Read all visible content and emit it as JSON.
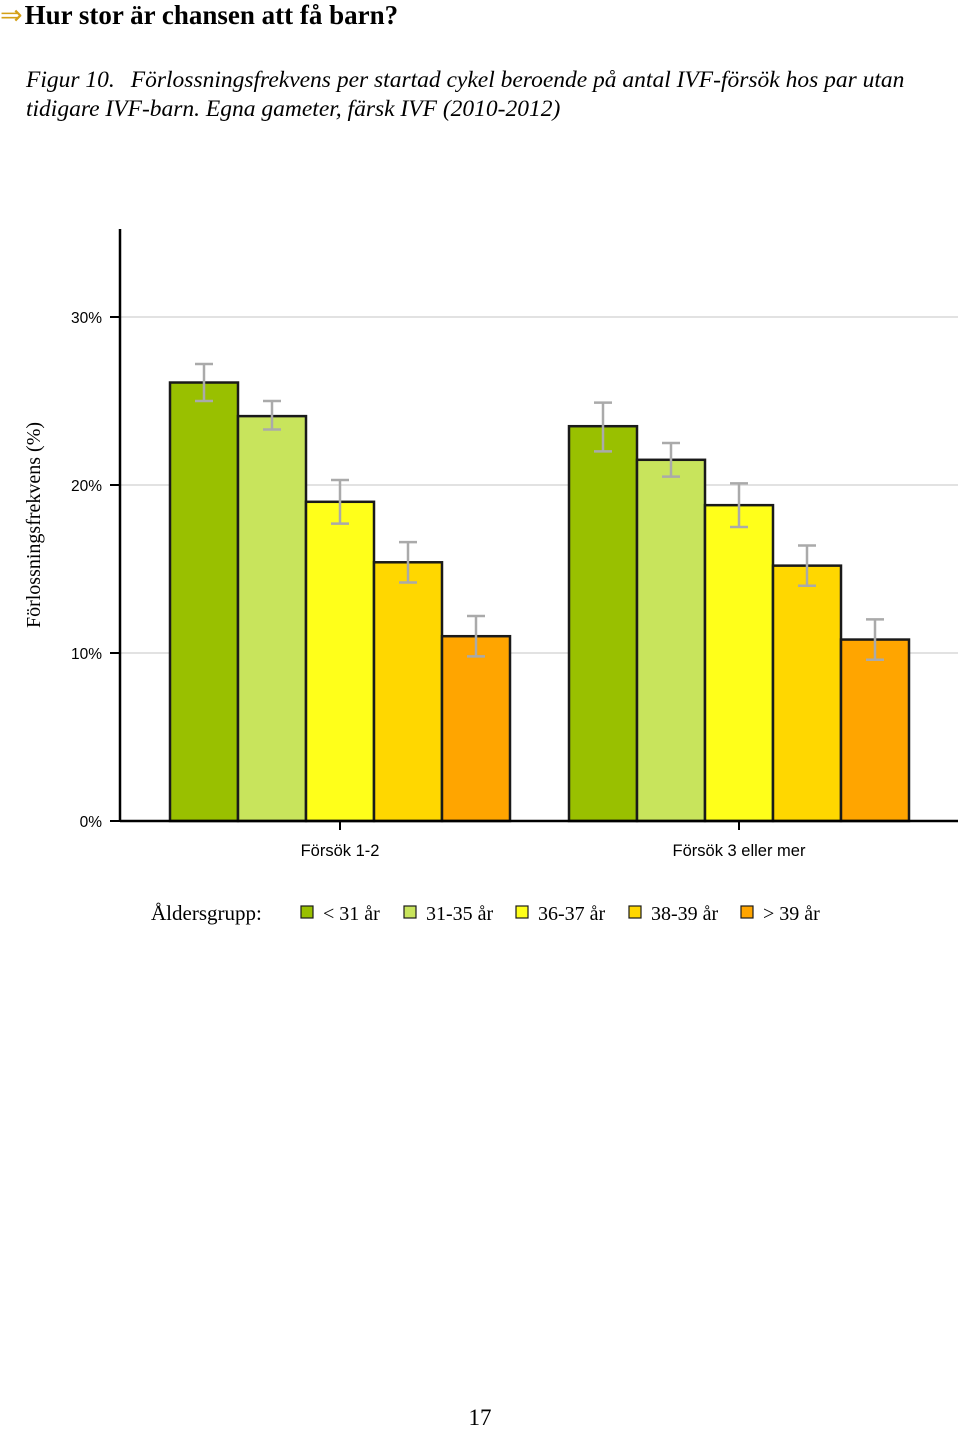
{
  "page": {
    "section_heading": "Hur stor är chansen att få barn?",
    "section_arrow": "⇒",
    "figure_label": "Figur 10.",
    "figure_caption": "Förlossningsfrekvens per startad cykel beroende på antal IVF-försök hos par utan tidigare IVF-barn. Egna gameter, färsk IVF (2010-2012)",
    "page_number": "17"
  },
  "chart_data": {
    "type": "bar",
    "ylabel": "Förlossningsfrekvens (%)",
    "xlabel": "",
    "categories": [
      "Försök 1-2",
      "Försök 3 eller mer"
    ],
    "ylim": [
      0,
      35
    ],
    "yticks": [
      0,
      10,
      20,
      30
    ],
    "ytick_labels": [
      "0%",
      "10%",
      "20%",
      "30%"
    ],
    "grid": true,
    "legend_title": "Åldersgrupp:",
    "legend_position": "bottom",
    "series": [
      {
        "name": "< 31 år",
        "color": "#99c000",
        "values": [
          26.1,
          23.5
        ],
        "ci_low": [
          25.0,
          22.0
        ],
        "ci_high": [
          27.2,
          24.9
        ]
      },
      {
        "name": "31-35 år",
        "color": "#c8e45c",
        "values": [
          24.1,
          21.5
        ],
        "ci_low": [
          23.3,
          20.5
        ],
        "ci_high": [
          25.0,
          22.5
        ]
      },
      {
        "name": "36-37 år",
        "color": "#ffff1a",
        "values": [
          19.0,
          18.8
        ],
        "ci_low": [
          17.7,
          17.5
        ],
        "ci_high": [
          20.3,
          20.1
        ]
      },
      {
        "name": "38-39 år",
        "color": "#ffd700",
        "values": [
          15.4,
          15.2
        ],
        "ci_low": [
          14.2,
          14.0
        ],
        "ci_high": [
          16.6,
          16.4
        ]
      },
      {
        "name": "> 39 år",
        "color": "#ffa500",
        "values": [
          11.0,
          10.8
        ],
        "ci_low": [
          9.8,
          9.6
        ],
        "ci_high": [
          12.2,
          12.0
        ]
      }
    ]
  }
}
